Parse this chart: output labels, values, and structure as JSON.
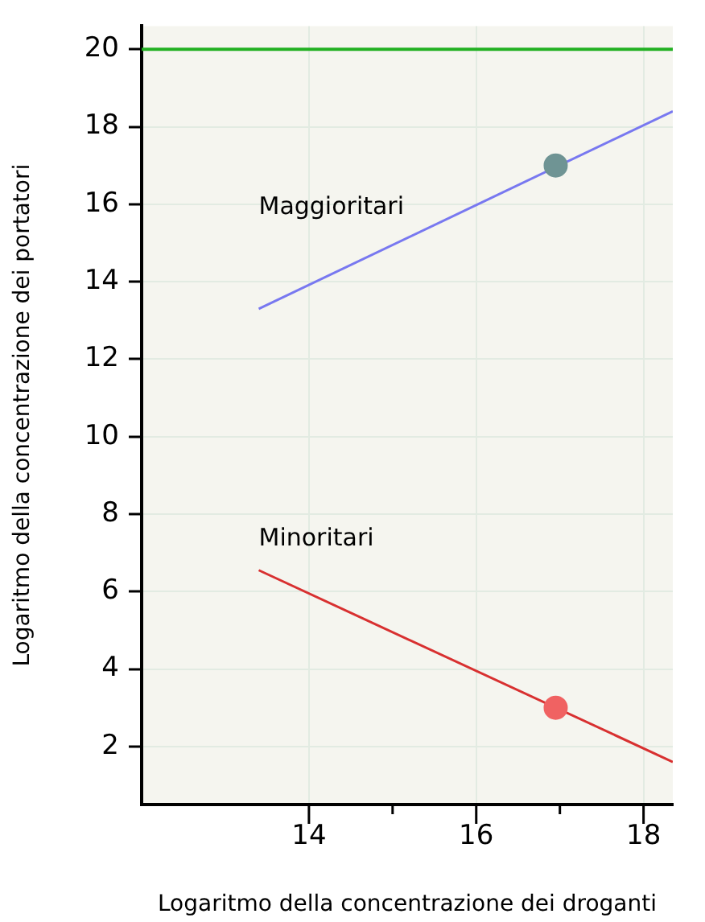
{
  "chart_data": {
    "type": "line",
    "xlabel": "Logaritmo della concentrazione dei droganti",
    "ylabel": "Logaritmo della concentrazione dei portatori",
    "xlim": [
      12,
      18.35
    ],
    "xticks": [
      14,
      {
        "value": 15,
        "label": null
      },
      16,
      {
        "value": 17,
        "label": null
      },
      18
    ],
    "ylim": [
      0.5,
      20.6
    ],
    "yticks": [
      2,
      4,
      6,
      8,
      10,
      12,
      14,
      16,
      18,
      20
    ],
    "grid": true,
    "legend": false,
    "series": [
      {
        "name": "Maggioritari",
        "marker": "none",
        "color": "#7878f0",
        "x": [
          13.4,
          18.35
        ],
        "values": [
          13.3,
          18.4
        ]
      },
      {
        "name": "Minoritari",
        "marker": "none",
        "color": "#d83030",
        "x": [
          13.4,
          18.35
        ],
        "values": [
          6.55,
          1.6
        ]
      },
      {
        "type": "scatter",
        "marker": "circle",
        "color": "#6f9494",
        "x": [
          16.95
        ],
        "values": [
          17.0
        ]
      },
      {
        "type": "scatter",
        "marker": "circle",
        "color": "#f06262",
        "x": [
          16.95
        ],
        "values": [
          3.0
        ]
      }
    ],
    "ref_lines": [
      {
        "axis": "y",
        "value": 20,
        "label": null,
        "color": "#22b022"
      }
    ]
  }
}
